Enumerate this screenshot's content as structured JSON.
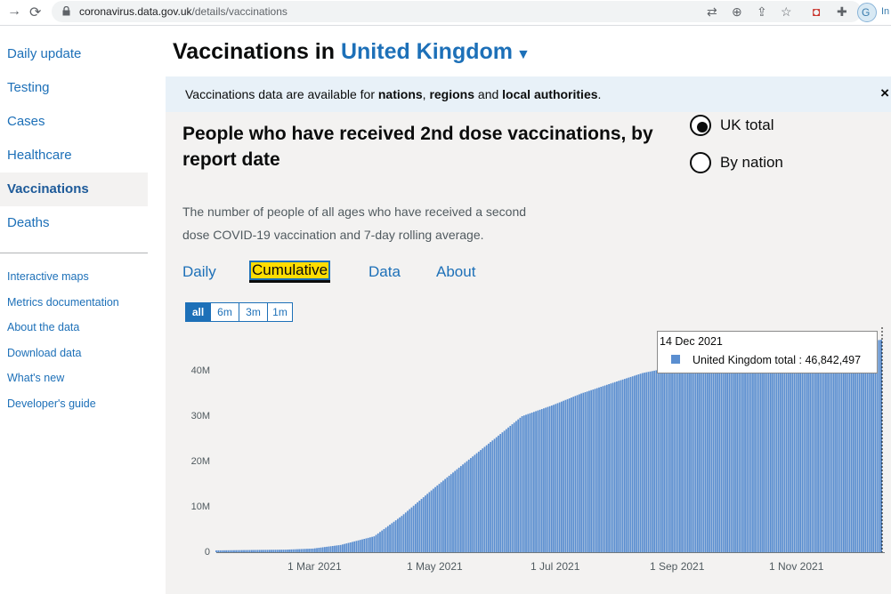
{
  "browser": {
    "url_domain": "coronavirus.data.gov.uk",
    "url_path": "/details/vaccinations",
    "profile_initial": "G",
    "profile_extra": "In"
  },
  "sidebar": {
    "items": [
      {
        "label": "Daily update"
      },
      {
        "label": "Testing"
      },
      {
        "label": "Cases"
      },
      {
        "label": "Healthcare"
      },
      {
        "label": "Vaccinations",
        "active": true
      },
      {
        "label": "Deaths"
      }
    ],
    "links": [
      {
        "label": "Interactive maps"
      },
      {
        "label": "Metrics documentation"
      },
      {
        "label": "About the data"
      },
      {
        "label": "Download data"
      },
      {
        "label": "What's new"
      },
      {
        "label": "Developer's guide"
      }
    ]
  },
  "header": {
    "title_prefix": "Vaccinations in",
    "location": "United Kingdom"
  },
  "banner": {
    "text_1": "Vaccinations data are available for ",
    "nations": "nations",
    "sep_1": ", ",
    "regions": "regions",
    "and_1": " and ",
    "local": "local authorities",
    "end": ".",
    "close": "×"
  },
  "card": {
    "title": "People who have received 2nd dose vaccinations, by report date",
    "description": "The number of people of all ages who have received a second dose COVID-19 vaccination and 7-day rolling average.",
    "radios": [
      {
        "label": "UK total",
        "selected": true
      },
      {
        "label": "By nation",
        "selected": false
      }
    ],
    "tabs": [
      {
        "label": "Daily"
      },
      {
        "label": "Cumulative",
        "active": true
      },
      {
        "label": "Data"
      },
      {
        "label": "About"
      }
    ],
    "periods": [
      {
        "label": "all",
        "active": true
      },
      {
        "label": "6m"
      },
      {
        "label": "3m"
      },
      {
        "label": "1m"
      }
    ]
  },
  "colors": {
    "bar": "#5a8ed0",
    "link": "#1d70b8",
    "focus": "#ffdd00"
  },
  "chart_data": {
    "type": "bar",
    "title": "",
    "xlabel": "",
    "ylabel": "",
    "y_ticks": [
      "0",
      "10M",
      "20M",
      "30M",
      "40M"
    ],
    "x_ticks": [
      "1 Mar 2021",
      "1 May 2021",
      "1 Jul 2021",
      "1 Sep 2021",
      "1 Nov 2021"
    ],
    "x_range": [
      "2021-01-11",
      "2021-12-14"
    ],
    "ylim": [
      0,
      48000000
    ],
    "grid": false,
    "series": [
      {
        "name": "United Kingdom total",
        "points": [
          [
            "2021-01-11",
            400000
          ],
          [
            "2021-02-01",
            500000
          ],
          [
            "2021-02-15",
            560000
          ],
          [
            "2021-03-01",
            800000
          ],
          [
            "2021-03-15",
            1600000
          ],
          [
            "2021-04-01",
            3500000
          ],
          [
            "2021-04-15",
            8000000
          ],
          [
            "2021-05-01",
            14000000
          ],
          [
            "2021-05-15",
            19000000
          ],
          [
            "2021-06-01",
            25000000
          ],
          [
            "2021-06-15",
            30000000
          ],
          [
            "2021-07-01",
            32500000
          ],
          [
            "2021-07-15",
            35000000
          ],
          [
            "2021-08-01",
            37500000
          ],
          [
            "2021-08-15",
            39500000
          ],
          [
            "2021-09-01",
            41000000
          ],
          [
            "2021-09-15",
            42000000
          ],
          [
            "2021-10-01",
            43000000
          ],
          [
            "2021-10-15",
            44000000
          ],
          [
            "2021-11-01",
            44800000
          ],
          [
            "2021-11-15",
            45500000
          ],
          [
            "2021-12-01",
            46200000
          ],
          [
            "2021-12-14",
            46842497
          ]
        ]
      }
    ],
    "tooltip": {
      "date": "14 Dec 2021",
      "series_label": "United Kingdom total : 46,842,497"
    }
  }
}
